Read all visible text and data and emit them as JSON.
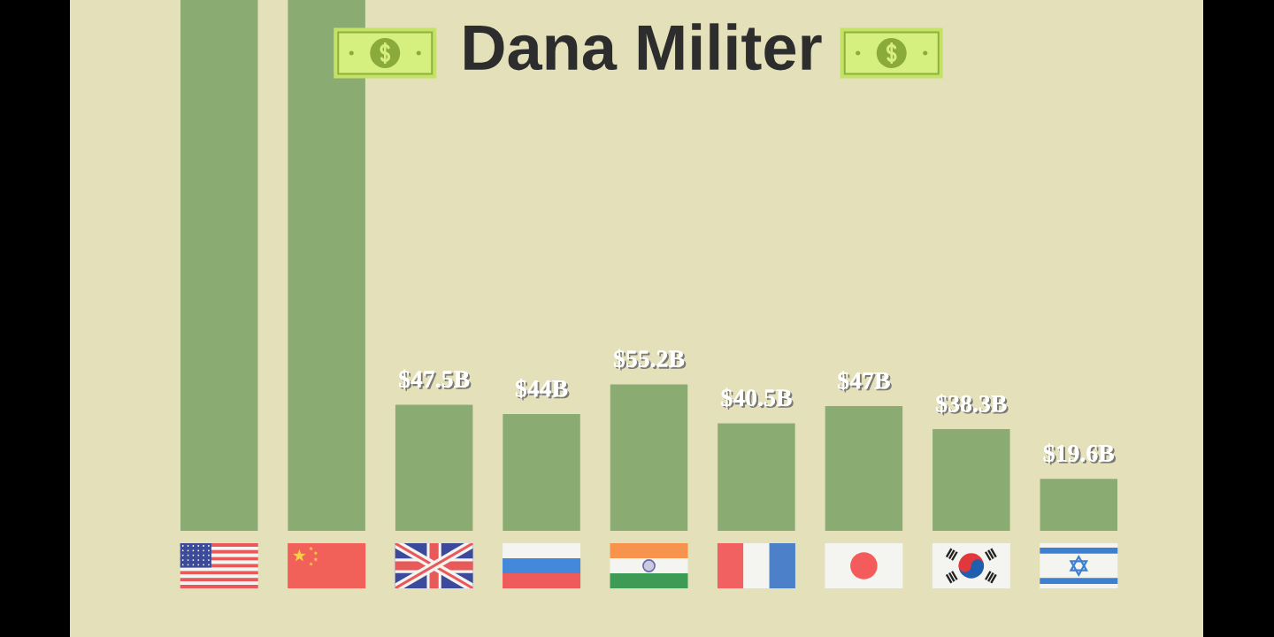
{
  "chart_data": {
    "type": "bar",
    "title": "Dana Militer",
    "categories": [
      null,
      null,
      null,
      null,
      null,
      null,
      null,
      null,
      null
    ],
    "values": [
      200,
      200,
      47.5,
      44,
      55.2,
      40.5,
      47,
      38.3,
      19.6
    ],
    "color": "#8aab72",
    "value_labels": [
      null,
      null,
      "$47.5B",
      "$44B",
      "$55.2B",
      "$40.5B",
      "$47B",
      "$38.3B",
      "$19.6B"
    ],
    "ylim": [
      0,
      200
    ]
  }
}
